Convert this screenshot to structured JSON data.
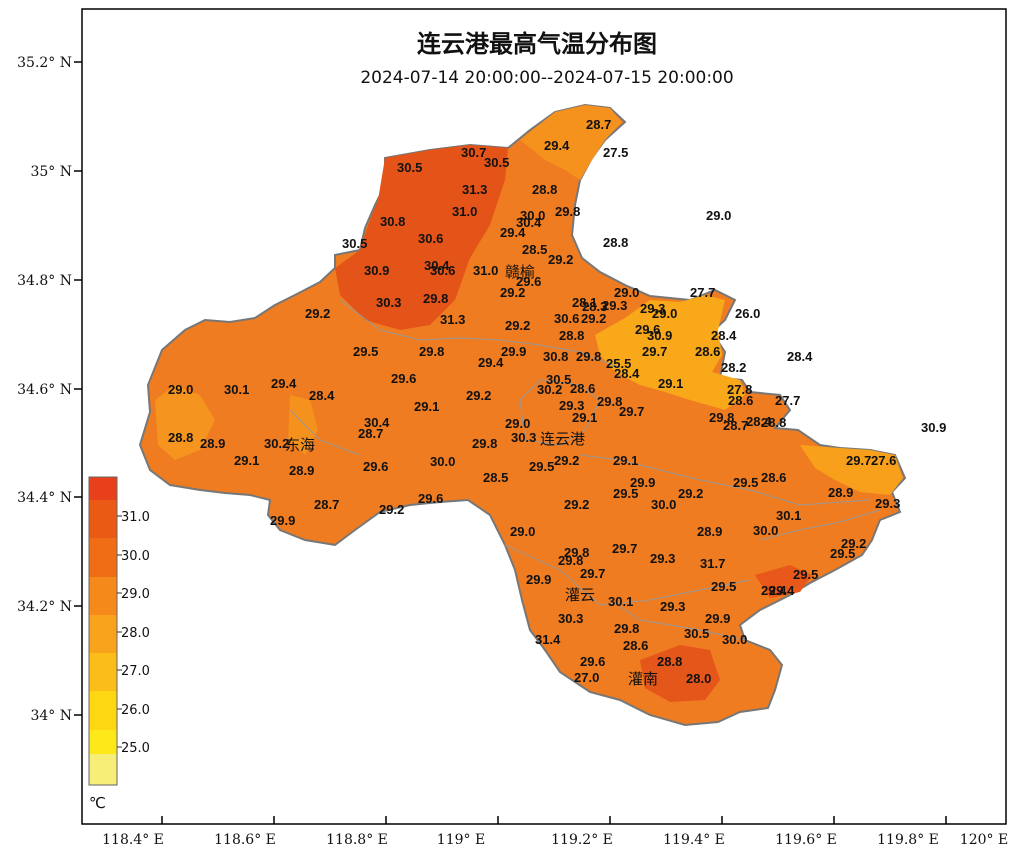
{
  "map": {
    "title": "连云港最高气温分布图",
    "subtitle": "2024-07-14 20:00:00--2024-07-15 20:00:00",
    "lon_ticks": [
      "118.4° E",
      "118.6° E",
      "118.8° E",
      "119° E",
      "119.2° E",
      "119.4° E",
      "119.6° E",
      "119.8° E",
      "120° E"
    ],
    "lat_ticks": [
      "35.2° N",
      "35° N",
      "34.8° N",
      "34.6° N",
      "34.4° N",
      "34.2° N",
      "34° N"
    ],
    "city_labels": [
      "赣榆",
      "连云港",
      "东海",
      "灌云",
      "灌南"
    ],
    "legend": {
      "unit": "℃",
      "levels": [
        "31.0",
        "30.0",
        "29.0",
        "28.0",
        "27.0",
        "26.0",
        "25.0"
      ],
      "colors": [
        "#e8401a",
        "#ea5a14",
        "#f06d16",
        "#f58a1a",
        "#f9a21c",
        "#fbbd17",
        "#fdd812",
        "#fde81a",
        "#f7ee78"
      ]
    },
    "colors": {
      "land_base": "#ef7c20",
      "land_hot": "#e45418",
      "land_warm": "#f5921e",
      "land_cool": "#fbb414",
      "outline": "#888888"
    }
  },
  "stations": [
    "30.7",
    "30.5",
    "28.7",
    "29.4",
    "27.5",
    "30.5",
    "31.3",
    "28.8",
    "31.0",
    "29.8",
    "30.0",
    "30.4",
    "29.0",
    "30.8",
    "29.4",
    "30.6",
    "28.5",
    "28.8",
    "30.5",
    "29.2",
    "30.4",
    "30.6",
    "30.9",
    "31.0",
    "29.6",
    "29.2",
    "27.7",
    "29.0",
    "30.3",
    "29.8",
    "28.1",
    "28.3",
    "29.2",
    "29.0",
    "26.0",
    "29.3",
    "31.3",
    "29.2",
    "30.6",
    "29.2",
    "29.6",
    "30.9",
    "28.4",
    "28.8",
    "29.3",
    "29.5",
    "29.8",
    "29.9",
    "30.8",
    "29.8",
    "29.7",
    "28.6",
    "28.4",
    "30.5",
    "28.2",
    "25.5",
    "29.4",
    "28.4",
    "29.1",
    "29.0",
    "30.1",
    "29.4",
    "28.4",
    "29.6",
    "29.1",
    "29.2",
    "30.2",
    "28.6",
    "29.8",
    "27.8",
    "27.7",
    "28.6",
    "29.3",
    "28.7",
    "29.7",
    "29.8",
    "28.4",
    "28.8",
    "30.4",
    "29.1",
    "29.0",
    "28.7",
    "28.8",
    "28.9",
    "30.2",
    "30.3",
    "30.9",
    "29.1",
    "28.9",
    "29.8",
    "29.5",
    "29.2",
    "29.1",
    "30.0",
    "28.5",
    "29.7",
    "27.6",
    "29.6",
    "29.9",
    "29.5",
    "28.6",
    "29.2",
    "29.6",
    "29.2",
    "30.0",
    "28.9",
    "29.3",
    "28.7",
    "29.5",
    "29.2",
    "29.9",
    "29.0",
    "29.8",
    "28.9",
    "29.8",
    "29.7",
    "30.0",
    "30.1",
    "29.2",
    "29.5",
    "29.3",
    "31.7",
    "29.5",
    "29.7",
    "29.5",
    "29.4",
    "29.4",
    "29.9",
    "30.1",
    "29.3",
    "30.3",
    "29.8",
    "29.9",
    "30.5",
    "31.4",
    "30.0",
    "28.6",
    "29.6",
    "28.8",
    "28.0",
    "27.0"
  ]
}
